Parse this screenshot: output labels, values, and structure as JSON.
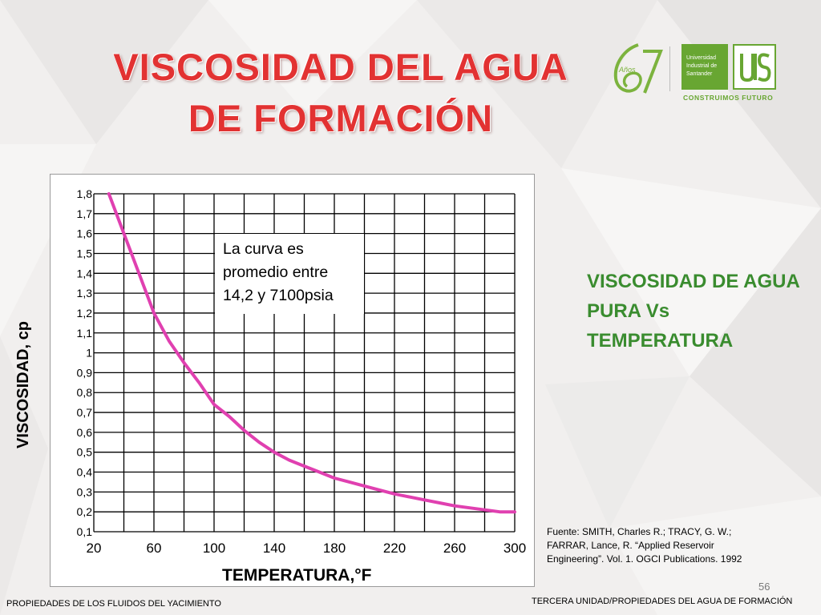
{
  "slide": {
    "title_line1": "VISCOSIDAD DEL AGUA",
    "title_line2": "DE FORMACIÓN",
    "subtitle": "VISCOSIDAD DE AGUA PURA Vs TEMPERATURA",
    "note": "La curva es promedio entre 14,2 y 7100psia",
    "source": "Fuente: SMITH, Charles R.; TRACY, G. W.; FARRAR, Lance, R. “Applied Reservoir Engineering”. Vol. 1. OGCI Publications. 1992",
    "page_number": "56",
    "footer_left": "PROPIEDADES DE LOS FLUIDOS DEL YACIMIENTO",
    "footer_right": "TERCERA UNIDAD/PROPIEDADES DEL AGUA DE FORMACIÓN"
  },
  "logo": {
    "anniversary_number": "67",
    "anniversary_word": "Años",
    "university_line1": "Universidad",
    "university_line2": "Industrial de",
    "university_line3": "Santander",
    "tagline": "CONSTRUIMOS FUTURO",
    "icon": "uis-emblem-icon"
  },
  "colors": {
    "title": "#e23232",
    "curve": "#e040b0",
    "subtitle": "#3a8c2f",
    "brand_green": "#68a632"
  },
  "chart_data": {
    "type": "line",
    "title": "",
    "xlabel": "TEMPERATURA,°F",
    "ylabel": "VISCOSIDAD, cp",
    "xlim": [
      20,
      300
    ],
    "ylim": [
      0.1,
      1.8
    ],
    "grid": true,
    "x_ticks": [
      20,
      60,
      100,
      140,
      180,
      220,
      260,
      300
    ],
    "x_tick_labels": [
      "20",
      "60",
      "100",
      "140",
      "180",
      "220",
      "260",
      "300"
    ],
    "x_grid_step": 20,
    "y_ticks": [
      0.1,
      0.2,
      0.3,
      0.4,
      0.5,
      0.6,
      0.7,
      0.8,
      0.9,
      1.0,
      1.1,
      1.2,
      1.3,
      1.4,
      1.5,
      1.6,
      1.7,
      1.8
    ],
    "y_tick_labels": [
      "0,1",
      "0,2",
      "0,3",
      "0,4",
      "0,5",
      "0,6",
      "0,7",
      "0,8",
      "0,9",
      "1",
      "1,1",
      "1,2",
      "1,3",
      "1,4",
      "1,5",
      "1,6",
      "1,7",
      "1,8"
    ],
    "series": [
      {
        "x": [
          30,
          40,
          50,
          60,
          70,
          80,
          90,
          100,
          110,
          120,
          130,
          140,
          150,
          160,
          170,
          180,
          190,
          200,
          210,
          220,
          230,
          240,
          250,
          260,
          270,
          280,
          290,
          300
        ],
        "y": [
          1.8,
          1.6,
          1.4,
          1.2,
          1.06,
          0.95,
          0.85,
          0.74,
          0.68,
          0.61,
          0.55,
          0.5,
          0.46,
          0.43,
          0.4,
          0.37,
          0.35,
          0.33,
          0.31,
          0.29,
          0.275,
          0.26,
          0.245,
          0.23,
          0.22,
          0.21,
          0.2,
          0.2
        ]
      }
    ]
  }
}
